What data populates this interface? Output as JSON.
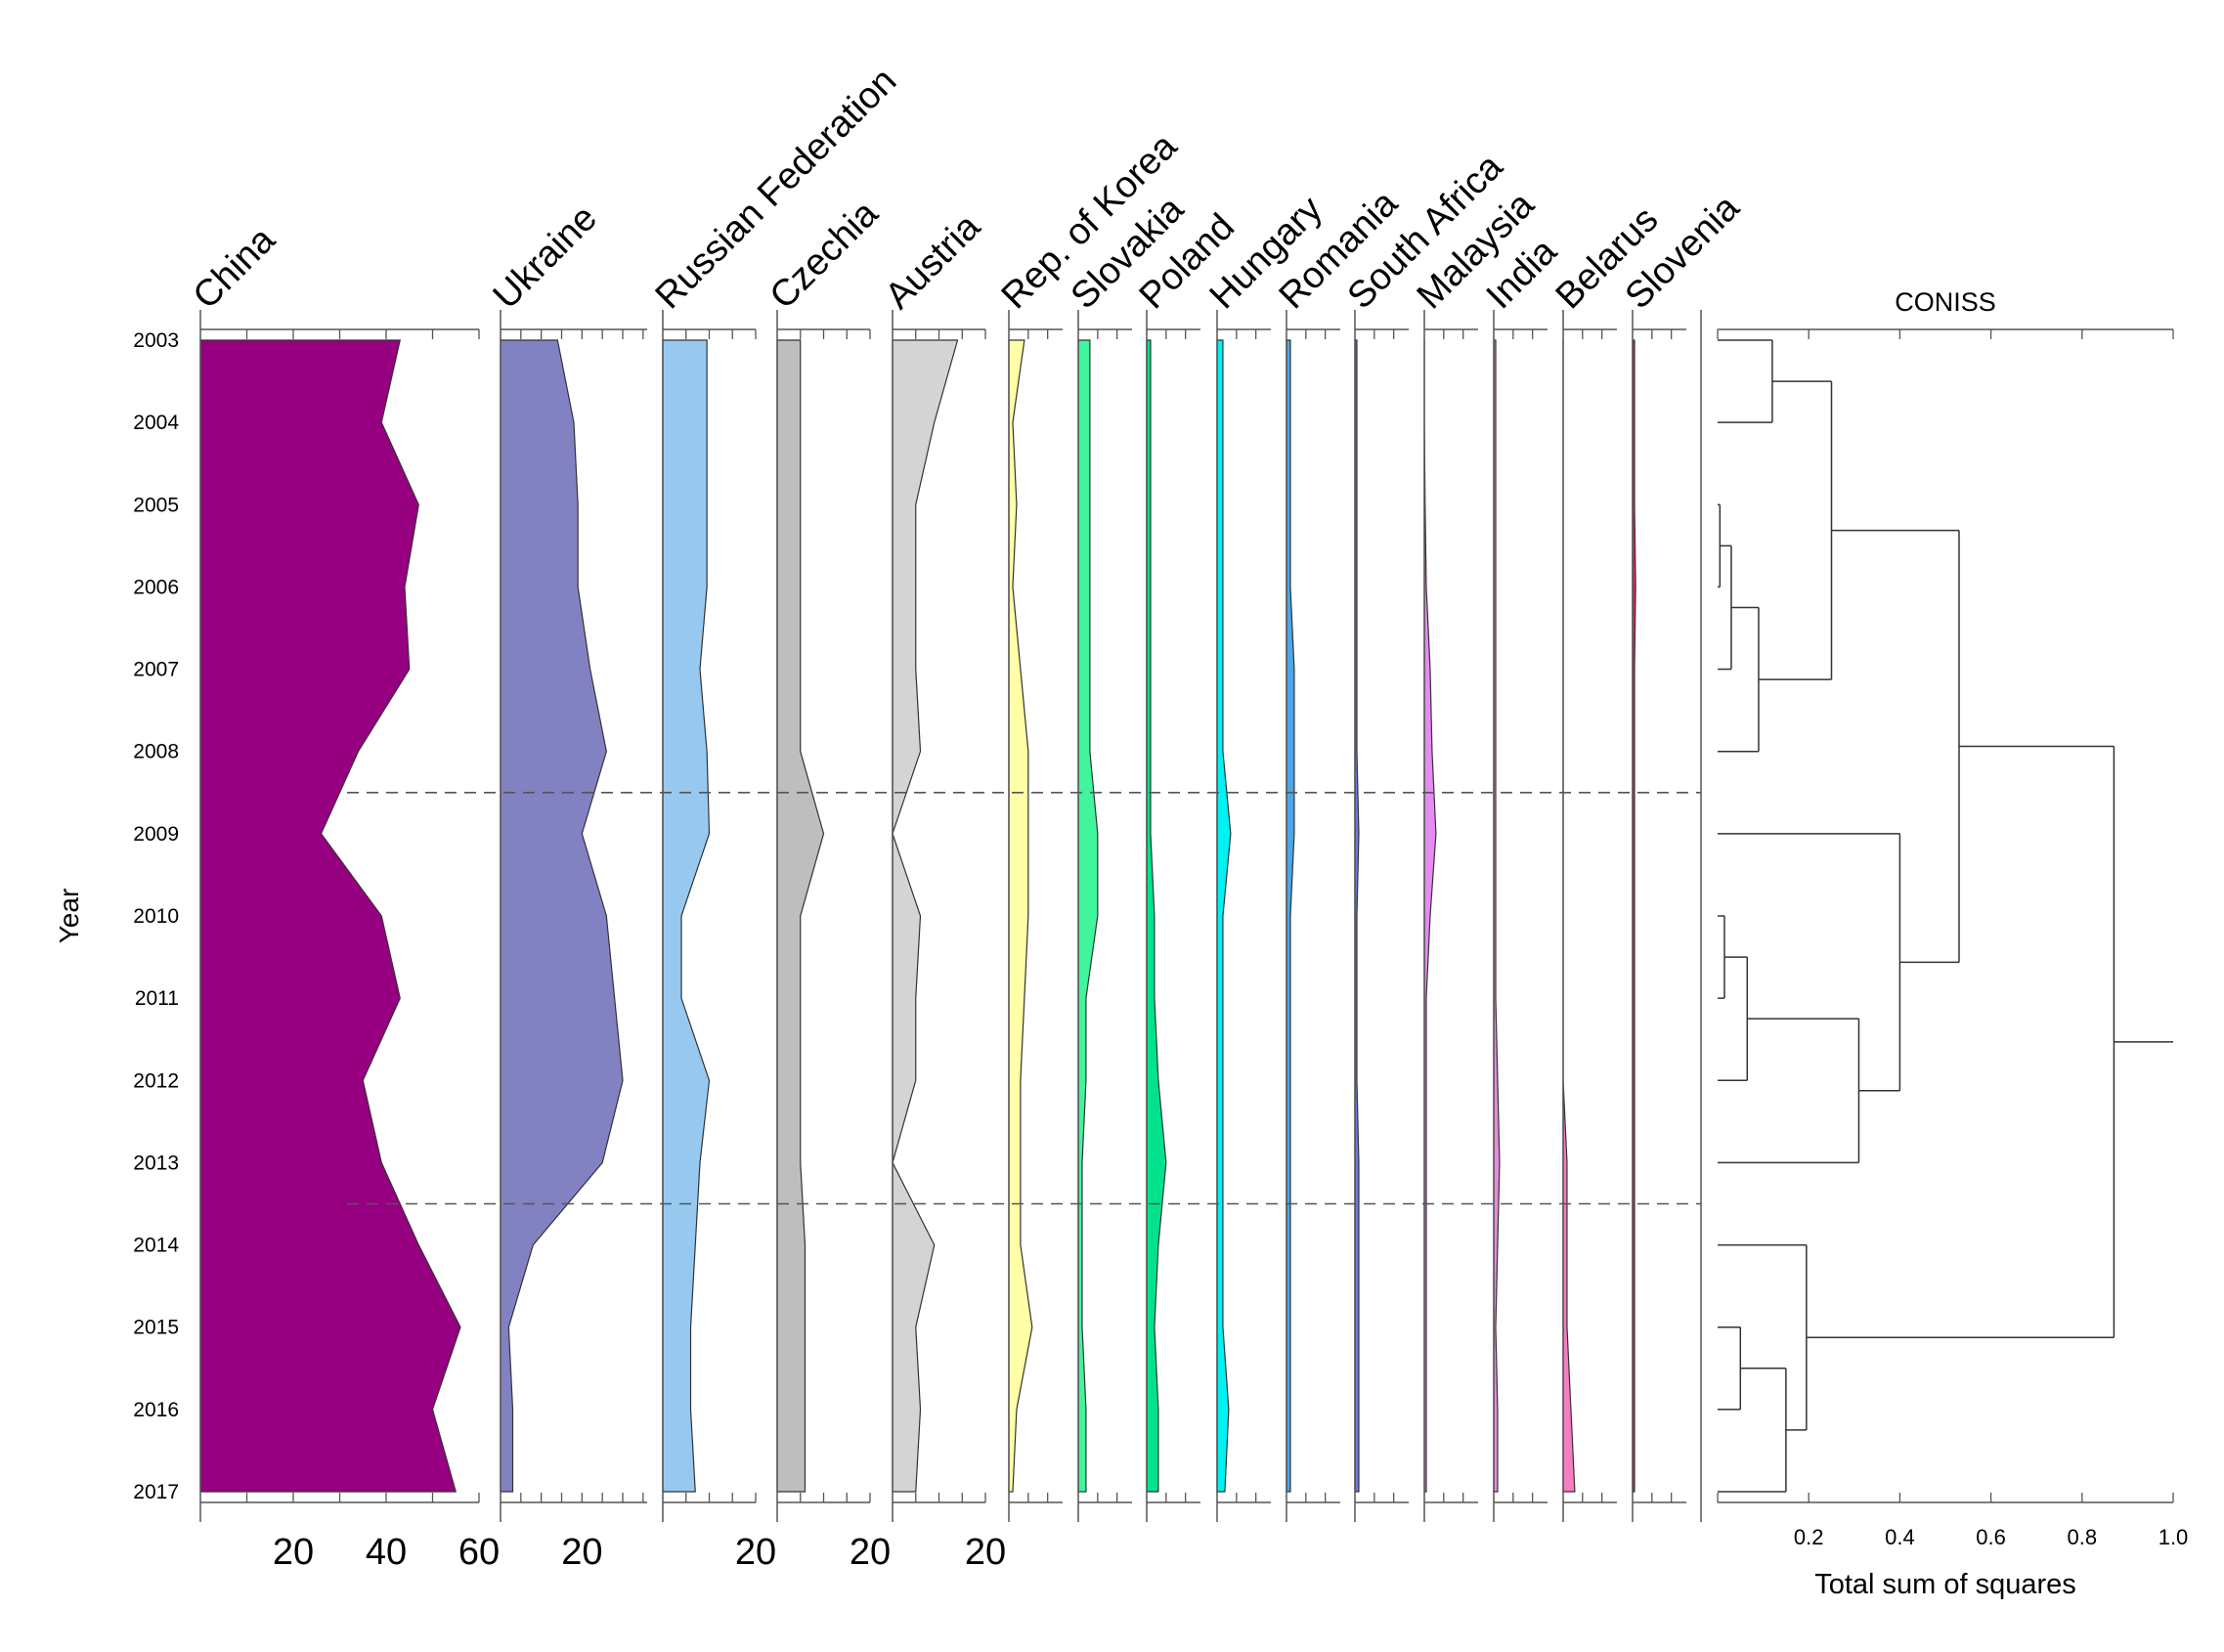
{
  "chart_data": {
    "type": "stratigraphic-area",
    "y_axis_label": "Year",
    "years": [
      2003,
      2004,
      2005,
      2006,
      2007,
      2008,
      2009,
      2010,
      2011,
      2012,
      2013,
      2014,
      2015,
      2016,
      2017
    ],
    "zone_boundaries": [
      2008.5,
      2013.5
    ],
    "series": [
      {
        "name": "China",
        "color": "#960080",
        "max": 60,
        "ticks": [
          20,
          40,
          60
        ],
        "minor_step": 10,
        "values": [
          43,
          39,
          47,
          44,
          45,
          34,
          26,
          39,
          43,
          35,
          39,
          47,
          56,
          50,
          55
        ]
      },
      {
        "name": "Ukraine",
        "color": "#8282C2",
        "max": 30,
        "ticks": [
          20
        ],
        "minor_step": 5,
        "values": [
          14,
          18,
          19,
          19,
          22,
          26,
          20,
          26,
          28,
          30,
          25,
          8,
          2,
          3,
          3
        ]
      },
      {
        "name": "Russian Federation",
        "color": "#97C9F0",
        "max": 20,
        "ticks": [
          20
        ],
        "minor_step": 5,
        "values": [
          9.5,
          9.5,
          9.5,
          9.5,
          8,
          9.5,
          10,
          4,
          4,
          10,
          8,
          7,
          6,
          6,
          7
        ]
      },
      {
        "name": "Czechia",
        "color": "#BEBEBE",
        "max": 20,
        "ticks": [
          20
        ],
        "minor_step": 5,
        "values": [
          5,
          5,
          5,
          5,
          5,
          5,
          10,
          5,
          5,
          5,
          5,
          6,
          6,
          6,
          6
        ]
      },
      {
        "name": "Austria",
        "color": "#D4D4D4",
        "max": 20,
        "ticks": [
          20
        ],
        "minor_step": 5,
        "values": [
          14,
          9,
          5,
          5,
          5,
          6,
          0,
          6,
          5,
          5,
          0,
          9,
          5,
          6,
          5
        ]
      },
      {
        "name": "Rep. of Korea",
        "color": "#FFFFA8",
        "max": 15,
        "ticks": [],
        "minor_step": 5,
        "values": [
          4,
          1,
          2,
          1,
          3,
          5,
          5,
          5,
          4,
          3,
          3,
          3,
          6,
          2,
          1
        ]
      },
      {
        "name": "Slovakia",
        "color": "#40F59C",
        "max": 15,
        "ticks": [],
        "minor_step": 5,
        "values": [
          3,
          3,
          3,
          3,
          3,
          3,
          5,
          5,
          2,
          2,
          1,
          1,
          1,
          2,
          2
        ]
      },
      {
        "name": "Poland",
        "color": "#00E38C",
        "max": 15,
        "ticks": [],
        "minor_step": 5,
        "values": [
          1,
          1,
          1,
          1,
          1,
          1,
          1,
          2,
          2,
          3,
          5,
          3,
          2,
          3,
          3
        ]
      },
      {
        "name": "Hungary",
        "color": "#00F2F2",
        "max": 15,
        "ticks": [],
        "minor_step": 5,
        "values": [
          1.5,
          1.5,
          1.5,
          1.5,
          1.5,
          1.5,
          3.5,
          1.5,
          1.5,
          1.5,
          1.5,
          1.5,
          1.5,
          3,
          2
        ]
      },
      {
        "name": "Romania",
        "color": "#4CA6E8",
        "max": 15,
        "ticks": [],
        "minor_step": 5,
        "values": [
          1,
          1,
          1,
          1,
          2,
          2,
          2,
          1,
          1,
          1,
          1,
          1,
          1,
          1,
          1
        ]
      },
      {
        "name": "South Africa",
        "color": "#6D7BD6",
        "max": 15,
        "ticks": [],
        "minor_step": 5,
        "values": [
          0.5,
          0.5,
          0.5,
          0.5,
          0.5,
          0.5,
          1,
          0.5,
          0.5,
          0.5,
          1,
          1,
          1,
          1,
          1
        ]
      },
      {
        "name": "Malaysia",
        "color": "#E68BF2",
        "max": 15,
        "ticks": [],
        "minor_step": 5,
        "values": [
          0,
          0,
          0.2,
          0.5,
          1.5,
          2,
          3,
          1.5,
          0.5,
          0.5,
          0.5,
          0.5,
          0.5,
          0.5,
          0.5
        ]
      },
      {
        "name": "India",
        "color": "#E98AE0",
        "max": 15,
        "ticks": [],
        "minor_step": 5,
        "values": [
          0.5,
          0.5,
          0.5,
          0.5,
          0.5,
          0.5,
          0.5,
          0.5,
          0.5,
          1,
          1.5,
          1,
          0.5,
          1,
          1
        ]
      },
      {
        "name": "Belarus",
        "color": "#F57DC0",
        "max": 15,
        "ticks": [],
        "minor_step": 5,
        "values": [
          0,
          0,
          0,
          0,
          0,
          0,
          0,
          0,
          0,
          0,
          1,
          1,
          1,
          2,
          3
        ]
      },
      {
        "name": "Slovenia",
        "color": "#E6265A",
        "max": 15,
        "ticks": [],
        "minor_step": 5,
        "values": [
          0.5,
          0.5,
          0.5,
          0.8,
          0.5,
          0.5,
          0.5,
          0.5,
          0.5,
          0.5,
          0.5,
          0.5,
          0.5,
          0.5,
          0.5
        ]
      }
    ],
    "dendrogram": {
      "title": "CONISS",
      "xlabel": "Total sum of squares",
      "xlim": [
        0,
        1.0
      ],
      "ticks": [
        "0.2",
        "0.4",
        "0.6",
        "0.8",
        "1.0"
      ],
      "merges": [
        {
          "a": [
            2003
          ],
          "b": [
            2004
          ],
          "h": 0.12
        },
        {
          "a": [
            2005
          ],
          "b": [
            2006
          ],
          "h": 0.005
        },
        {
          "a": [
            2005,
            2006
          ],
          "b": [
            2007
          ],
          "h": 0.03
        },
        {
          "a": [
            2005,
            2006,
            2007
          ],
          "b": [
            2008
          ],
          "h": 0.09
        },
        {
          "a": [
            2003,
            2004
          ],
          "b": [
            2005,
            2006,
            2007,
            2008
          ],
          "h": 0.25
        },
        {
          "a": [
            2010
          ],
          "b": [
            2011
          ],
          "h": 0.015
        },
        {
          "a": [
            2010,
            2011
          ],
          "b": [
            2012
          ],
          "h": 0.065
        },
        {
          "a": [
            2010,
            2011,
            2012
          ],
          "b": [
            2013
          ],
          "h": 0.31
        },
        {
          "a": [
            2009
          ],
          "b": [
            2010,
            2011,
            2012,
            2013
          ],
          "h": 0.4
        },
        {
          "a": [
            2003,
            2004,
            2005,
            2006,
            2007,
            2008
          ],
          "b": [
            2009,
            2010,
            2011,
            2012,
            2013
          ],
          "h": 0.53
        },
        {
          "a": [
            2015
          ],
          "b": [
            2016
          ],
          "h": 0.05
        },
        {
          "a": [
            2015,
            2016
          ],
          "b": [
            2017
          ],
          "h": 0.15
        },
        {
          "a": [
            2014
          ],
          "b": [
            2015,
            2016,
            2017
          ],
          "h": 0.195
        },
        {
          "a": [
            2003,
            2004,
            2005,
            2006,
            2007,
            2008,
            2009,
            2010,
            2011,
            2012,
            2013
          ],
          "b": [
            2014,
            2015,
            2016,
            2017
          ],
          "h": 0.87
        }
      ]
    }
  }
}
